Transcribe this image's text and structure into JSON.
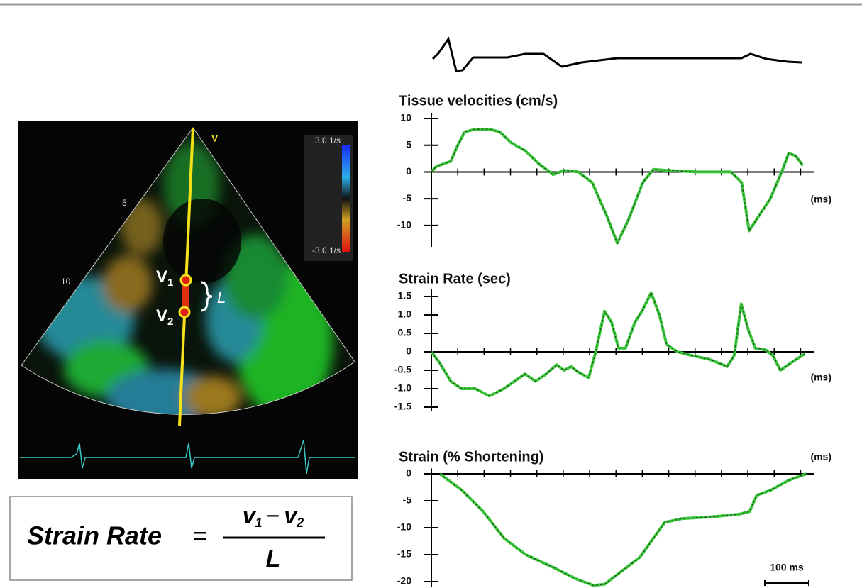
{
  "chart_data": [
    {
      "type": "line",
      "title": "Tissue velocities (cm/s)",
      "x_label": "(ms)",
      "xlim": [
        0,
        870
      ],
      "xticks": [
        0,
        60,
        120,
        180,
        240,
        300,
        360,
        420,
        480,
        540,
        600,
        660,
        720,
        780,
        840
      ],
      "ylim": [
        -14,
        11
      ],
      "yticks": [
        10,
        5,
        0,
        -5,
        -10
      ],
      "series": [
        {
          "color": "#3cc83c",
          "x": [
            0,
            11,
            27,
            44,
            60,
            76,
            100,
            132,
            156,
            181,
            213,
            245,
            277,
            302,
            334,
            366,
            398,
            423,
            448,
            481,
            505,
            537,
            602,
            682,
            706,
            723,
            739,
            771,
            797,
            813,
            829,
            845
          ],
          "values": [
            0,
            1,
            1.5,
            2,
            5,
            7.5,
            8,
            8,
            7.5,
            5.5,
            4,
            1.5,
            -0.5,
            0.3,
            0,
            -2,
            -8,
            -13.3,
            -9,
            -2,
            0.5,
            0.3,
            0,
            0,
            -2,
            -11,
            -9,
            -5,
            0,
            3.5,
            3,
            1.2
          ]
        }
      ]
    },
    {
      "type": "line",
      "title": "Strain Rate (sec)",
      "x_label": "(ms)",
      "xlim": [
        0,
        870
      ],
      "xticks": [
        0,
        60,
        120,
        180,
        240,
        300,
        360,
        420,
        480,
        540,
        600,
        660,
        720,
        780,
        840
      ],
      "ylim": [
        -1.6,
        1.7
      ],
      "yticks": [
        {
          "value": 1.5,
          "label": "1.5"
        },
        {
          "value": 1,
          "label": "1.0"
        },
        {
          "value": 0.5,
          "label": "0.5"
        },
        0,
        {
          "value": -0.5,
          "label": "-0.5"
        },
        {
          "value": -1,
          "label": "-1.0"
        },
        {
          "value": -1.5,
          "label": "-1.5"
        }
      ],
      "series": [
        {
          "color": "#3cc83c",
          "x": [
            0,
            19,
            44,
            69,
            100,
            132,
            165,
            189,
            213,
            237,
            261,
            285,
            302,
            318,
            334,
            358,
            374,
            394,
            410,
            426,
            442,
            463,
            479,
            500,
            519,
            535,
            560,
            592,
            632,
            673,
            689,
            705,
            721,
            737,
            761,
            777,
            794,
            818,
            850
          ],
          "values": [
            0,
            -0.3,
            -0.8,
            -1,
            -1,
            -1.2,
            -1,
            -0.8,
            -0.6,
            -0.8,
            -0.6,
            -0.35,
            -0.5,
            -0.4,
            -0.55,
            -0.7,
            0,
            1.1,
            0.8,
            0.1,
            0.1,
            0.8,
            1.1,
            1.6,
            1,
            0.2,
            0,
            -0.1,
            -0.2,
            -0.4,
            -0.1,
            1.3,
            0.6,
            0.1,
            0.05,
            -0.1,
            -0.5,
            -0.3,
            -0.05
          ]
        }
      ]
    },
    {
      "type": "line",
      "title": "Strain (% Shortening)",
      "x_label": "(ms)",
      "xlim": [
        0,
        870
      ],
      "xticks": [
        0,
        60,
        120,
        180,
        240,
        300,
        360,
        420,
        480,
        540,
        600,
        660,
        720,
        780,
        840
      ],
      "ylim": [
        -21,
        1
      ],
      "yticks": [
        0,
        -5,
        -10,
        -15,
        -20
      ],
      "scale_bar": {
        "value": 100,
        "label": "100 ms"
      },
      "series": [
        {
          "color": "#3cc83c",
          "x": [
            19,
            69,
            118,
            166,
            215,
            281,
            329,
            369,
            394,
            426,
            474,
            531,
            571,
            635,
            700,
            724,
            740,
            773,
            813,
            853
          ],
          "values": [
            0,
            -3,
            -7,
            -12,
            -15,
            -17.5,
            -19.5,
            -20.7,
            -20.5,
            -18.5,
            -15.5,
            -9,
            -8.3,
            -8,
            -7.5,
            -7,
            -4,
            -3,
            -1.2,
            0
          ]
        }
      ]
    }
  ],
  "echo_panel": {
    "beam_label": "V",
    "scale_top": "3.0 1/s",
    "scale_bottom": "-3.0 1/s",
    "depth_5": "5",
    "depth_10": "10",
    "v1": [
      "V",
      "1"
    ],
    "v2": [
      "V",
      "2"
    ],
    "length": "L"
  },
  "formula": {
    "lhs": "Strain Rate",
    "equals": "=",
    "numerator": [
      "v",
      "1",
      "−",
      "v",
      "2"
    ],
    "denominator": "L"
  }
}
